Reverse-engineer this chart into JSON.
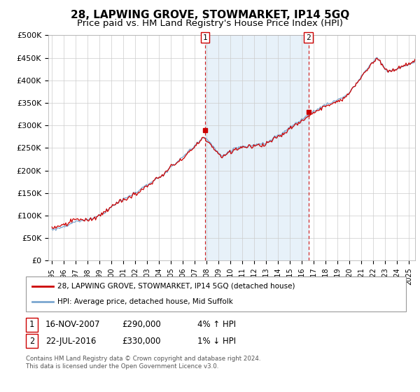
{
  "title": "28, LAPWING GROVE, STOWMARKET, IP14 5GQ",
  "subtitle": "Price paid vs. HM Land Registry's House Price Index (HPI)",
  "title_fontsize": 11,
  "subtitle_fontsize": 9.5,
  "ylabel_ticks": [
    "£0",
    "£50K",
    "£100K",
    "£150K",
    "£200K",
    "£250K",
    "£300K",
    "£350K",
    "£400K",
    "£450K",
    "£500K"
  ],
  "ylim": [
    0,
    500000
  ],
  "xlim_start": 1994.7,
  "xlim_end": 2025.5,
  "vline1_x": 2007.88,
  "vline2_x": 2016.55,
  "legend_line1": "28, LAPWING GROVE, STOWMARKET, IP14 5GQ (detached house)",
  "legend_line2": "HPI: Average price, detached house, Mid Suffolk",
  "footer": "Contains HM Land Registry data © Crown copyright and database right 2024.\nThis data is licensed under the Open Government Licence v3.0.",
  "hpi_color": "#7ba7d0",
  "property_color": "#cc0000",
  "vline_color": "#cc0000",
  "shade_color": "#d8e8f5",
  "bg_color": "#ffffff",
  "plot_bg_color": "#ffffff",
  "grid_color": "#cccccc",
  "trans1_date": "16-NOV-2007",
  "trans1_price": "£290,000",
  "trans1_hpi": "4% ↑ HPI",
  "trans2_date": "22-JUL-2016",
  "trans2_price": "£330,000",
  "trans2_hpi": "1% ↓ HPI"
}
